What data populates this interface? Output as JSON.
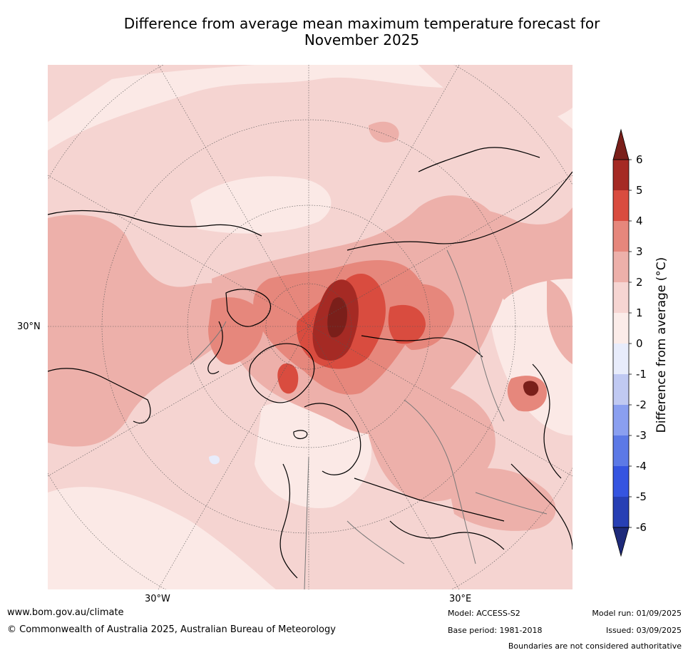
{
  "title_line1": "Difference from average mean maximum temperature forecast for",
  "title_line2": "November 2025",
  "labels": {
    "lat_30n": "30°N",
    "lon_30w": "30°W",
    "lon_30e": "30°E"
  },
  "colorbar": {
    "title": "Difference from average (°C)",
    "ticks": [
      "6",
      "5",
      "4",
      "3",
      "2",
      "1",
      "0",
      "-1",
      "-2",
      "-3",
      "-4",
      "-5",
      "-6"
    ],
    "colors": [
      "#a52a24",
      "#d94c3f",
      "#e6877c",
      "#edb0aa",
      "#f6d5d2",
      "#fbece9",
      "#e8ecfb",
      "#c0c9f2",
      "#8a9ff0",
      "#5c79e6",
      "#3554e0",
      "#273fb4"
    ],
    "over_color": "#7a1f1a",
    "under_color": "#1e2a7a"
  },
  "footer": {
    "url": "www.bom.gov.au/climate",
    "copyright": "© Commonwealth of Australia 2025, Australian Bureau of Meteorology",
    "model": "Model: ACCESS-S2",
    "base_period": "Base period: 1981-2018",
    "model_run": "Model run: 01/09/2025",
    "issued": "Issued: 03/09/2025",
    "disclaimer": "Boundaries are not considered authoritative"
  }
}
